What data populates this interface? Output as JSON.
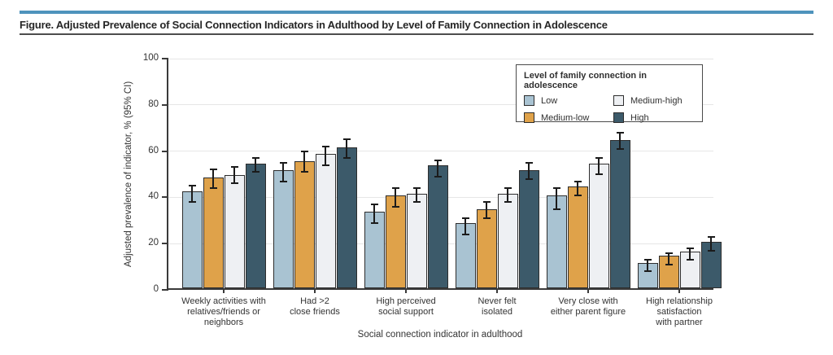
{
  "header": {
    "title": "Figure. Adjusted Prevalence of Social Connection Indicators in Adulthood by Level of Family Connection in Adolescence"
  },
  "colors": {
    "accent_rule": "#4e93bc",
    "low": "#a9c3d2",
    "medium_low": "#dfa24a",
    "medium_high": "#eef0f3",
    "high": "#3c5a6a",
    "bar_border": "#2d2d2d",
    "error_bar": "#1b1b1b",
    "gridline": "#e6e6e6",
    "axis": "#3a3a3a"
  },
  "legend": {
    "title": "Level of family connection in adolescence",
    "items": [
      {
        "label": "Low",
        "color": "#a9c3d2"
      },
      {
        "label": "Medium-high",
        "color": "#eef0f3"
      },
      {
        "label": "Medium-low",
        "color": "#dfa24a"
      },
      {
        "label": "High",
        "color": "#3c5a6a"
      }
    ]
  },
  "chart_data": {
    "type": "bar",
    "title": "Adjusted Prevalence of Social Connection Indicators in Adulthood by Level of Family Connection in Adolescence",
    "xlabel": "Social connection indicator in adulthood",
    "ylabel": "Adjusted prevalence of indicator, % (95% CI)",
    "ylim": [
      0,
      100
    ],
    "y_ticks": [
      0,
      20,
      40,
      60,
      80,
      100
    ],
    "grid": true,
    "legend_position": "top-right-inside",
    "error_bars": "95% CI",
    "categories": [
      "Weekly activities with\nrelatives/friends or\nneighbors",
      "Had >2\nclose friends",
      "High perceived\nsocial support",
      "Never felt\nisolated",
      "Very close with\neither parent figure",
      "High relationship\nsatisfaction\nwith partner"
    ],
    "series": [
      {
        "name": "Low",
        "color": "#a9c3d2",
        "values": [
          42,
          51,
          33,
          28,
          40,
          11
        ],
        "ci": [
          [
            38,
            45
          ],
          [
            47,
            55
          ],
          [
            29,
            37
          ],
          [
            24,
            31
          ],
          [
            35,
            44
          ],
          [
            8,
            13
          ]
        ]
      },
      {
        "name": "Medium-low",
        "color": "#dfa24a",
        "values": [
          48,
          55,
          40,
          34,
          44,
          14
        ],
        "ci": [
          [
            44,
            52
          ],
          [
            51,
            60
          ],
          [
            36,
            44
          ],
          [
            31,
            38
          ],
          [
            41,
            47
          ],
          [
            11,
            16
          ]
        ]
      },
      {
        "name": "Medium-high",
        "color": "#eef0f3",
        "values": [
          49,
          58,
          41,
          41,
          54,
          16
        ],
        "ci": [
          [
            46,
            53
          ],
          [
            54,
            62
          ],
          [
            38,
            44
          ],
          [
            38,
            44
          ],
          [
            50,
            57
          ],
          [
            13,
            18
          ]
        ]
      },
      {
        "name": "High",
        "color": "#3c5a6a",
        "values": [
          54,
          61,
          53,
          51,
          64,
          20
        ],
        "ci": [
          [
            51,
            57
          ],
          [
            57,
            65
          ],
          [
            49,
            56
          ],
          [
            48,
            55
          ],
          [
            61,
            68
          ],
          [
            17,
            23
          ]
        ]
      }
    ]
  }
}
